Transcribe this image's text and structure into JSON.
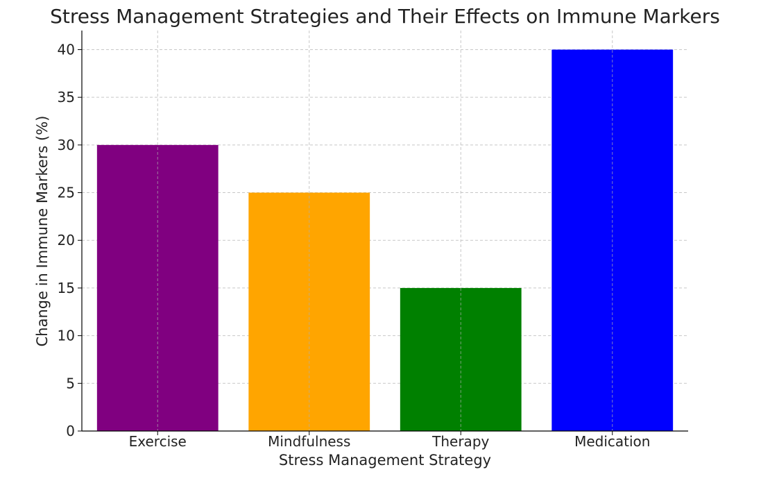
{
  "chart_data": {
    "type": "bar",
    "title": "Stress Management Strategies and Their Effects on Immune Markers",
    "xlabel": "Stress Management Strategy",
    "ylabel": "Change in Immune Markers (%)",
    "categories": [
      "Exercise",
      "Mindfulness",
      "Therapy",
      "Medication"
    ],
    "values": [
      30,
      25,
      15,
      40
    ],
    "colors": [
      "#800080",
      "#FFA500",
      "#008000",
      "#0000FF"
    ],
    "ylim": [
      0,
      42
    ],
    "yticks": [
      0,
      5,
      10,
      15,
      20,
      25,
      30,
      35,
      40
    ],
    "grid": true
  }
}
